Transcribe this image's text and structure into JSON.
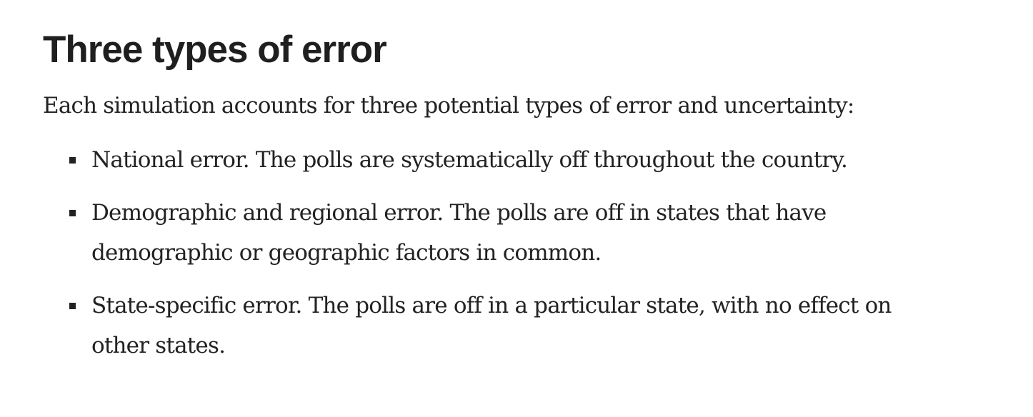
{
  "article": {
    "heading": "Three types of error",
    "intro": "Each simulation accounts for three potential types of error and uncertainty:",
    "bullets": [
      "National error. The polls are systematically off throughout the country.",
      "Demographic and regional error. The polls are off in states that have demographic or geographic factors in common.",
      "State-specific error. The polls are off in a particular state, with no effect on other states."
    ]
  }
}
